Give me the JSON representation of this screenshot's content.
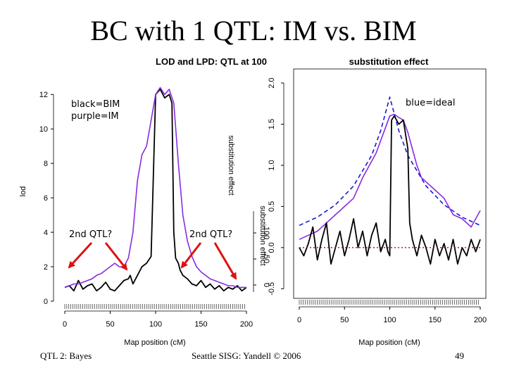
{
  "slide": {
    "title": "BC with 1 QTL: IM vs. BIM",
    "footer_left": "QTL 2: Bayes",
    "footer_center": "Seattle SISG: Yandell © 2006",
    "page_number": "49"
  },
  "annotations": {
    "black_label": "black=BIM",
    "purple_label": "purple=IM",
    "blue_label": "blue=ideal",
    "qtl2_left": "2nd QTL?",
    "qtl2_right": "2nd QTL?"
  },
  "colors": {
    "bim": "#000000",
    "im": "#8a2be2",
    "ideal": "#1a1acc",
    "zero_line": "#cc0000",
    "arrow": "#dd1111"
  },
  "chart_data": [
    {
      "type": "line",
      "title": "LOD and LPD: QTL at 100",
      "xlabel": "Map position (cM)",
      "ylabel": "lod",
      "xlim": [
        0,
        200
      ],
      "ylim": [
        0,
        12.5
      ],
      "xticks": [
        0,
        50,
        100,
        150,
        200
      ],
      "yticks": [
        0,
        2,
        4,
        6,
        8,
        10,
        12
      ],
      "right_axis_label": "substitution effect",
      "right_axis_ticks": [
        "0",
        "50",
        "100"
      ],
      "series": [
        {
          "name": "BIM",
          "color": "#000000",
          "x": [
            0,
            5,
            10,
            15,
            20,
            25,
            30,
            35,
            40,
            45,
            50,
            55,
            60,
            65,
            70,
            72,
            75,
            80,
            85,
            90,
            95,
            100,
            105,
            110,
            115,
            118,
            120,
            122,
            125,
            127,
            130,
            135,
            140,
            145,
            150,
            155,
            160,
            165,
            170,
            175,
            180,
            185,
            190,
            195,
            200
          ],
          "y": [
            0.8,
            0.9,
            0.6,
            1.2,
            0.7,
            0.9,
            1.0,
            0.6,
            0.8,
            1.1,
            0.7,
            0.6,
            0.9,
            1.2,
            1.3,
            1.5,
            1.0,
            1.5,
            2.0,
            2.2,
            2.6,
            12.0,
            12.3,
            11.8,
            12.0,
            11.5,
            4.0,
            2.5,
            2.2,
            1.8,
            1.5,
            1.3,
            1.0,
            0.9,
            1.2,
            0.8,
            1.0,
            0.7,
            0.9,
            0.6,
            0.8,
            0.7,
            0.9,
            0.6,
            0.8
          ]
        },
        {
          "name": "IM",
          "color": "#8a2be2",
          "x": [
            0,
            5,
            10,
            15,
            20,
            25,
            30,
            35,
            40,
            45,
            50,
            55,
            60,
            65,
            70,
            75,
            80,
            85,
            90,
            95,
            100,
            105,
            110,
            115,
            120,
            125,
            130,
            135,
            140,
            145,
            150,
            155,
            160,
            165,
            170,
            175,
            180,
            185,
            190,
            195,
            200
          ],
          "y": [
            0.8,
            0.9,
            1.0,
            1.0,
            1.1,
            1.2,
            1.3,
            1.5,
            1.6,
            1.8,
            2.0,
            2.2,
            2.0,
            2.0,
            2.5,
            4.0,
            7.0,
            8.5,
            9.0,
            10.5,
            12.0,
            12.4,
            12.0,
            12.3,
            11.5,
            8.0,
            5.0,
            3.5,
            2.6,
            2.0,
            1.7,
            1.5,
            1.3,
            1.2,
            1.1,
            1.0,
            0.9,
            0.9,
            0.8,
            0.8,
            0.8
          ]
        }
      ]
    },
    {
      "type": "line",
      "title": "substitution effect",
      "xlabel": "Map position (cM)",
      "ylabel": "substitution effect",
      "xlim": [
        0,
        200
      ],
      "ylim": [
        -0.6,
        2.0
      ],
      "xticks": [
        0,
        50,
        100,
        150,
        200
      ],
      "yticks": [
        -0.5,
        0.0,
        0.5,
        1.0,
        1.5,
        2.0
      ],
      "series": [
        {
          "name": "ideal",
          "color": "#1a1acc",
          "style": "dashed",
          "x": [
            0,
            20,
            40,
            60,
            80,
            90,
            100,
            110,
            120,
            140,
            160,
            180,
            200
          ],
          "y": [
            0.27,
            0.37,
            0.52,
            0.75,
            1.12,
            1.42,
            1.83,
            1.42,
            1.12,
            0.75,
            0.52,
            0.37,
            0.27
          ]
        },
        {
          "name": "IM",
          "color": "#8a2be2",
          "x": [
            0,
            10,
            20,
            30,
            40,
            50,
            60,
            70,
            80,
            85,
            90,
            95,
            100,
            105,
            110,
            115,
            120,
            125,
            130,
            135,
            140,
            150,
            160,
            170,
            180,
            190,
            200
          ],
          "y": [
            0.1,
            0.15,
            0.2,
            0.3,
            0.4,
            0.5,
            0.6,
            0.85,
            1.05,
            1.15,
            1.3,
            1.45,
            1.6,
            1.62,
            1.58,
            1.55,
            1.4,
            1.2,
            1.0,
            0.85,
            0.8,
            0.7,
            0.6,
            0.4,
            0.35,
            0.25,
            0.45
          ]
        },
        {
          "name": "BIM",
          "color": "#000000",
          "x": [
            0,
            5,
            10,
            15,
            20,
            25,
            30,
            35,
            40,
            45,
            50,
            55,
            60,
            65,
            70,
            75,
            80,
            85,
            90,
            95,
            98,
            100,
            102,
            105,
            110,
            115,
            120,
            122,
            125,
            130,
            135,
            140,
            145,
            150,
            155,
            160,
            165,
            170,
            175,
            180,
            185,
            190,
            195,
            200
          ],
          "y": [
            0.0,
            -0.1,
            0.05,
            0.25,
            -0.15,
            0.1,
            0.3,
            -0.2,
            0.0,
            0.2,
            -0.1,
            0.1,
            0.35,
            0.0,
            0.2,
            -0.1,
            0.15,
            0.3,
            -0.05,
            0.1,
            -0.05,
            -0.1,
            1.55,
            1.6,
            1.5,
            1.55,
            1.2,
            0.3,
            0.1,
            -0.1,
            0.15,
            0.0,
            -0.2,
            0.1,
            -0.1,
            0.05,
            -0.15,
            0.1,
            -0.2,
            0.0,
            -0.1,
            0.1,
            -0.05,
            0.1
          ]
        },
        {
          "name": "zero",
          "color": "#cc0000",
          "style": "dotted",
          "x": [
            0,
            200
          ],
          "y": [
            0,
            0
          ]
        }
      ]
    }
  ]
}
